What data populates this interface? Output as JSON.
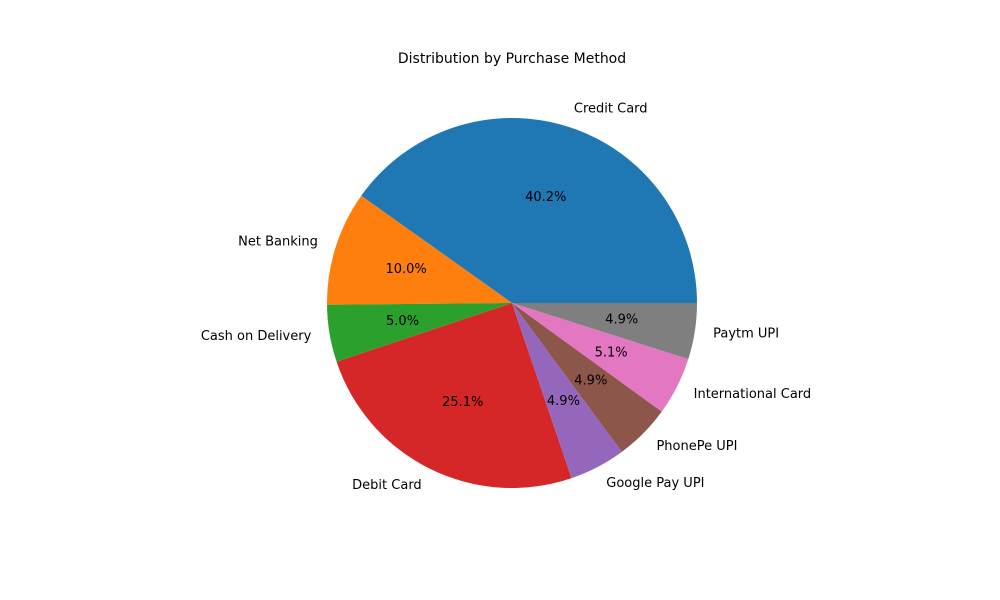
{
  "chart_data": {
    "type": "pie",
    "title": "Distribution by Purchase Method",
    "start_angle_deg": 0,
    "direction": "counterclockwise",
    "slices": [
      {
        "label": "Credit Card",
        "value": 40.2,
        "pct_label": "40.2%",
        "color": "#1f77b4"
      },
      {
        "label": "Net Banking",
        "value": 10.0,
        "pct_label": "10.0%",
        "color": "#ff7f0e"
      },
      {
        "label": "Cash on Delivery",
        "value": 5.0,
        "pct_label": "5.0%",
        "color": "#2ca02c"
      },
      {
        "label": "Debit Card",
        "value": 25.1,
        "pct_label": "25.1%",
        "color": "#d62728"
      },
      {
        "label": "Google Pay UPI",
        "value": 4.9,
        "pct_label": "4.9%",
        "color": "#9467bd"
      },
      {
        "label": "PhonePe UPI",
        "value": 4.9,
        "pct_label": "4.9%",
        "color": "#8c564b"
      },
      {
        "label": "International Card",
        "value": 5.1,
        "pct_label": "5.1%",
        "color": "#e377c2"
      },
      {
        "label": "Paytm UPI",
        "value": 4.9,
        "pct_label": "4.9%",
        "color": "#7f7f7f"
      }
    ]
  }
}
